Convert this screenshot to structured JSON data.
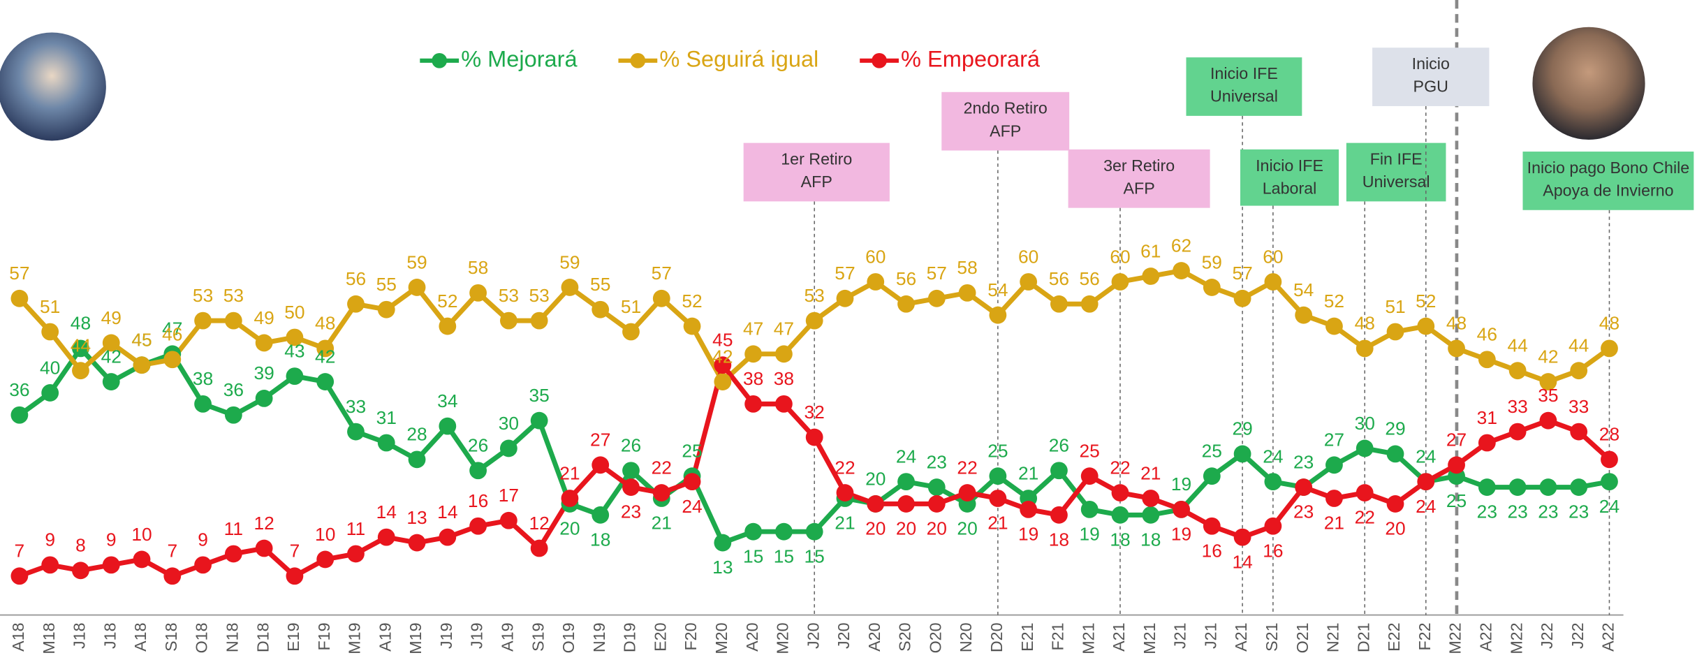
{
  "chart_data": {
    "type": "line",
    "categories": [
      "A18",
      "M18",
      "J18",
      "J18",
      "A18",
      "S18",
      "O18",
      "N18",
      "D18",
      "E19",
      "F19",
      "M19",
      "A19",
      "M19",
      "J19",
      "J19",
      "A19",
      "S19",
      "O19",
      "N19",
      "D19",
      "E20",
      "F20",
      "M20",
      "A20",
      "M20",
      "J20",
      "J20",
      "A20",
      "S20",
      "O20",
      "N20",
      "D20",
      "E21",
      "F21",
      "M21",
      "A21",
      "M21",
      "J21",
      "J21",
      "A21",
      "S21",
      "O21",
      "N21",
      "D21",
      "E22",
      "F22",
      "M22",
      "A22",
      "M22",
      "J22",
      "J22",
      "A22"
    ],
    "series": [
      {
        "name": "% Mejorará",
        "color": "#1daa4c",
        "values": [
          36,
          40,
          48,
          42,
          45,
          47,
          38,
          36,
          39,
          43,
          42,
          33,
          31,
          28,
          34,
          26,
          30,
          35,
          20,
          18,
          26,
          21,
          25,
          13,
          15,
          15,
          15,
          21,
          20,
          24,
          23,
          20,
          25,
          21,
          26,
          19,
          18,
          18,
          19,
          25,
          29,
          24,
          23,
          27,
          30,
          29,
          24,
          25,
          23,
          23,
          23,
          23,
          24
        ]
      },
      {
        "name": "% Seguirá igual",
        "color": "#d9a514",
        "values": [
          57,
          51,
          44,
          49,
          45,
          46,
          53,
          53,
          49,
          50,
          48,
          56,
          55,
          59,
          52,
          58,
          53,
          53,
          59,
          55,
          51,
          57,
          52,
          42,
          47,
          47,
          53,
          57,
          60,
          56,
          57,
          58,
          54,
          60,
          56,
          56,
          60,
          61,
          62,
          59,
          57,
          60,
          54,
          52,
          48,
          51,
          52,
          48,
          46,
          44,
          42,
          44,
          48
        ]
      },
      {
        "name": "% Empeorará",
        "color": "#e8151d",
        "values": [
          7,
          9,
          8,
          9,
          10,
          7,
          9,
          11,
          12,
          7,
          10,
          11,
          14,
          13,
          14,
          16,
          17,
          12,
          21,
          27,
          23,
          22,
          24,
          45,
          38,
          38,
          32,
          22,
          20,
          20,
          20,
          22,
          21,
          19,
          18,
          25,
          22,
          21,
          19,
          16,
          14,
          16,
          23,
          21,
          22,
          20,
          24,
          27,
          31,
          33,
          35,
          33,
          28
        ]
      }
    ],
    "annotations": [
      {
        "lines": [
          "1er Retiro",
          "AFP"
        ],
        "color": "#f2b8e0"
      },
      {
        "lines": [
          "2ndo Retiro",
          "AFP"
        ],
        "color": "#f2b8e0"
      },
      {
        "lines": [
          "3er Retiro",
          "AFP"
        ],
        "color": "#f2b8e0"
      },
      {
        "lines": [
          "Inicio IFE",
          "Universal"
        ],
        "color": "#62d38f"
      },
      {
        "lines": [
          "Inicio IFE",
          "Laboral"
        ],
        "color": "#62d38f"
      },
      {
        "lines": [
          "Fin IFE",
          "Universal"
        ],
        "color": "#62d38f"
      },
      {
        "lines": [
          "Inicio",
          "PGU"
        ],
        "color": "#dde1ea"
      },
      {
        "lines": [
          "Inicio pago Bono Chile",
          "Apoya de Invierno"
        ],
        "color": "#62d38f"
      }
    ]
  }
}
